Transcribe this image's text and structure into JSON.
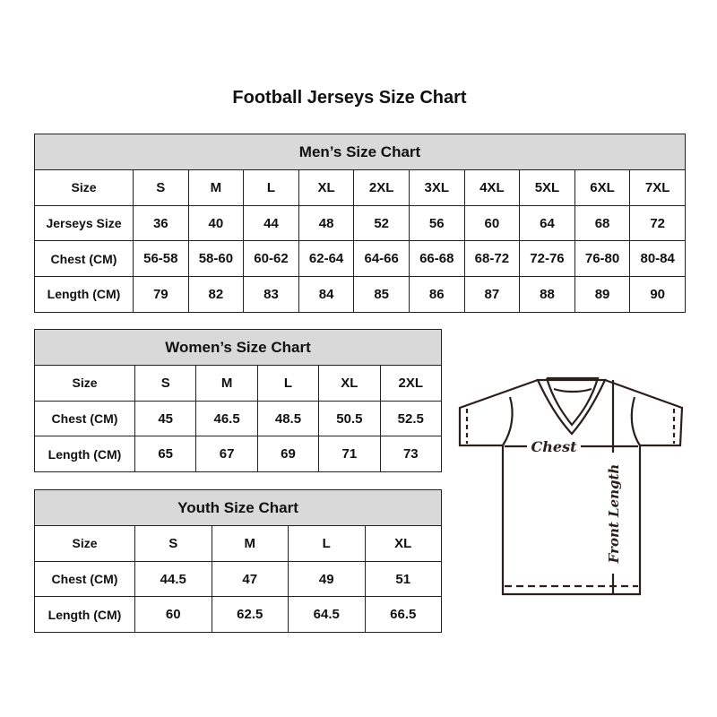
{
  "title": "Football Jerseys Size Chart",
  "men": {
    "heading": "Men’s Size Chart",
    "rows": [
      [
        "Size",
        "S",
        "M",
        "L",
        "XL",
        "2XL",
        "3XL",
        "4XL",
        "5XL",
        "6XL",
        "7XL"
      ],
      [
        "Jerseys Size",
        "36",
        "40",
        "44",
        "48",
        "52",
        "56",
        "60",
        "64",
        "68",
        "72"
      ],
      [
        "Chest (CM)",
        "56-58",
        "58-60",
        "60-62",
        "62-64",
        "64-66",
        "66-68",
        "68-72",
        "72-76",
        "76-80",
        "80-84"
      ],
      [
        "Length (CM)",
        "79",
        "82",
        "83",
        "84",
        "85",
        "86",
        "87",
        "88",
        "89",
        "90"
      ]
    ]
  },
  "women": {
    "heading": "Women’s Size Chart",
    "rows": [
      [
        "Size",
        "S",
        "M",
        "L",
        "XL",
        "2XL"
      ],
      [
        "Chest (CM)",
        "45",
        "46.5",
        "48.5",
        "50.5",
        "52.5"
      ],
      [
        "Length (CM)",
        "65",
        "67",
        "69",
        "71",
        "73"
      ]
    ]
  },
  "youth": {
    "heading": "Youth Size Chart",
    "rows": [
      [
        "Size",
        "S",
        "M",
        "L",
        "XL"
      ],
      [
        "Chest (CM)",
        "44.5",
        "47",
        "49",
        "51"
      ],
      [
        "Length (CM)",
        "60",
        "62.5",
        "64.5",
        "66.5"
      ]
    ]
  },
  "diagram": {
    "chest_label": "Chest",
    "length_label": "Front Length"
  },
  "colors": {
    "header_bg": "#d9d9d9",
    "border": "#222222",
    "line": "#2a1f1a"
  }
}
